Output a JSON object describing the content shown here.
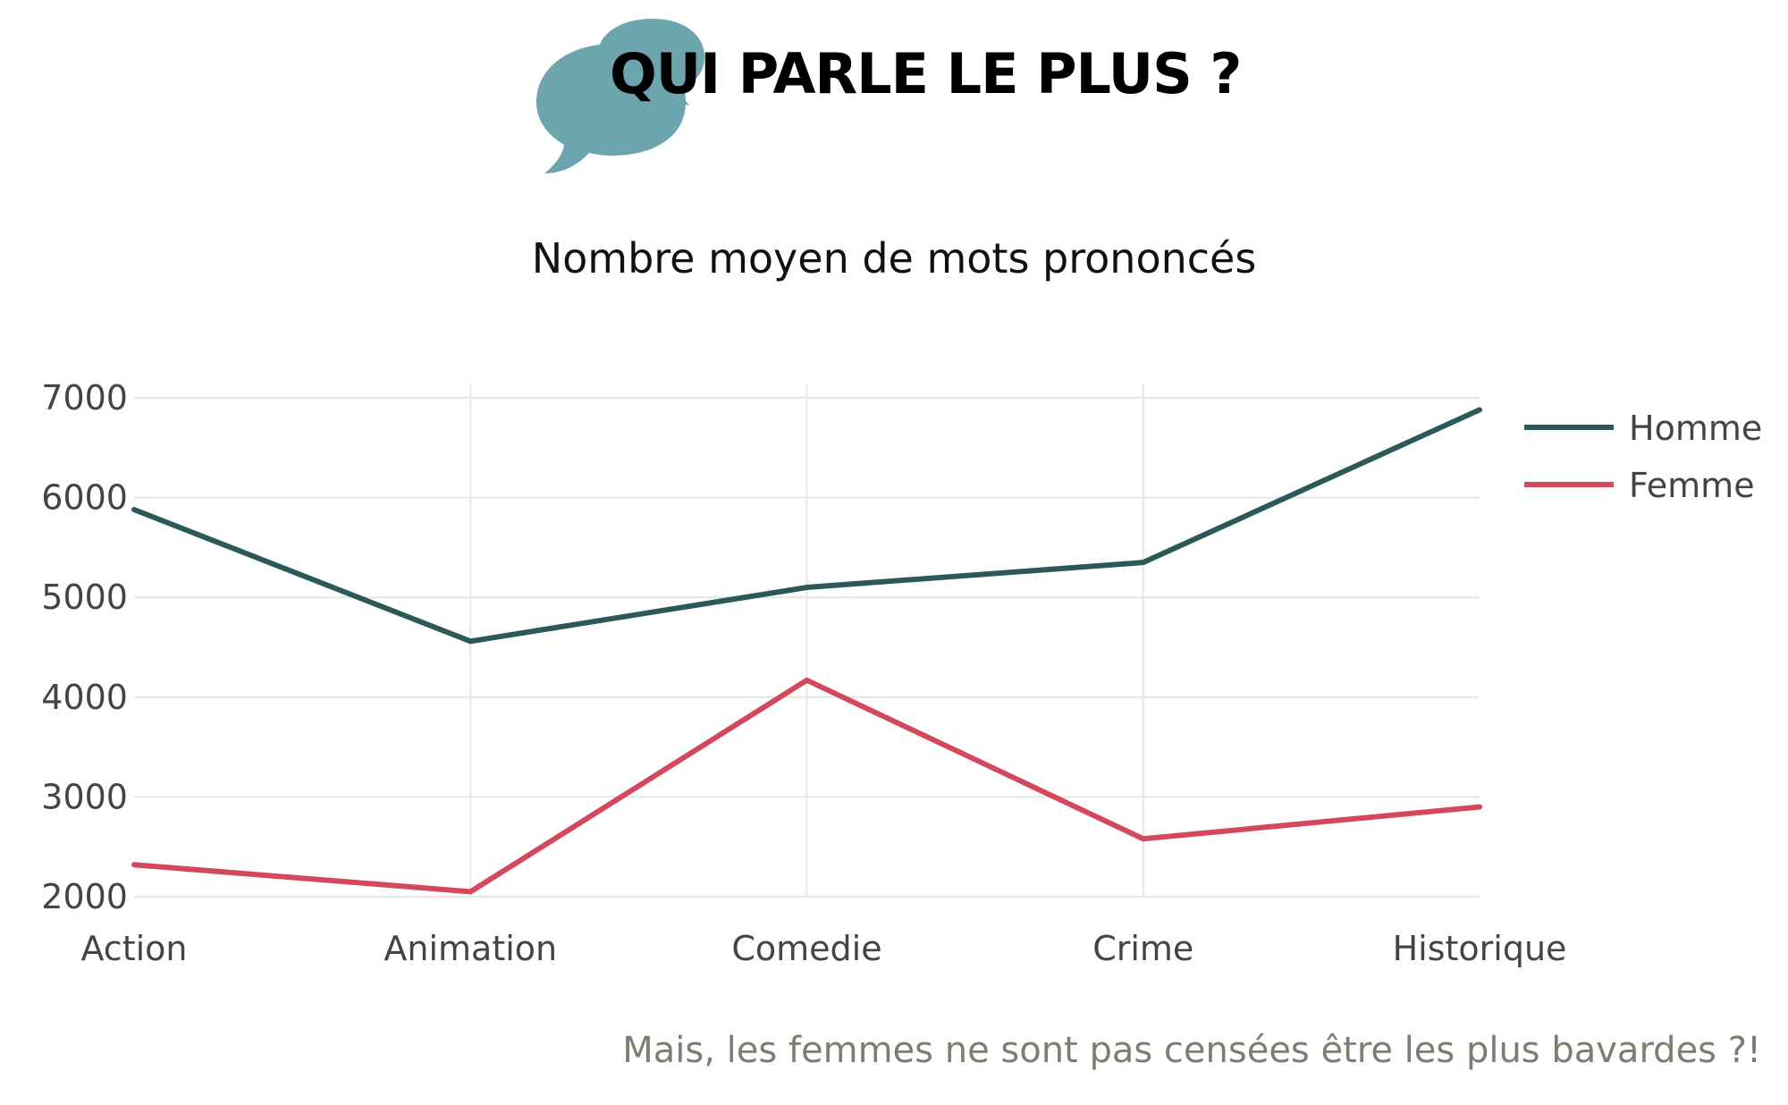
{
  "header": {
    "title": "QUI PARLE LE PLUS ?",
    "icon": "speech-bubbles-icon",
    "icon_color": "#6ca5ad"
  },
  "chart_data": {
    "type": "line",
    "title": "Nombre moyen de mots prononcés",
    "xlabel": "",
    "ylabel": "",
    "categories": [
      "Action",
      "Animation",
      "Comedie",
      "Crime",
      "Historique"
    ],
    "series": [
      {
        "name": "Homme",
        "values": [
          5880,
          4560,
          5100,
          5350,
          6880
        ],
        "color": "#2b5959"
      },
      {
        "name": "Femme",
        "values": [
          2320,
          2050,
          4170,
          2580,
          2900
        ],
        "color": "#d4485e"
      }
    ],
    "ylim": [
      2000,
      7000
    ],
    "yticks": [
      2000,
      3000,
      4000,
      5000,
      6000,
      7000
    ],
    "grid": true,
    "legend_position": "top-right"
  },
  "footer": {
    "note": "Mais, les femmes ne sont pas censées être les plus bavardes ?!"
  }
}
